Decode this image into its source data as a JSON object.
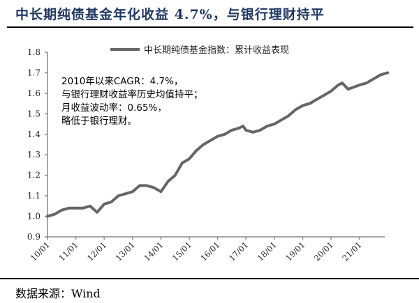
{
  "header": {
    "title": "中长期纯债基金年化收益 4.7%，与银行理财持平"
  },
  "footer": {
    "source": "数据来源：Wind"
  },
  "annotation": {
    "lines": [
      "2010年以来CAGR：4.7%，",
      "与银行理财收益率历史均值持平；",
      "月收益波动率：0.65%，",
      "略低于银行理财。"
    ]
  },
  "legend": {
    "label": "中长期纯债基金指数：累计收益表现",
    "color": "#666666"
  },
  "chart_data": {
    "type": "line",
    "title": "中长期纯债基金年化收益 4.7%，与银行理财持平",
    "xlabel": "",
    "ylabel": "",
    "ylim": [
      0.9,
      1.8
    ],
    "yticks": [
      "0.9",
      "1.0",
      "1.1",
      "1.2",
      "1.3",
      "1.4",
      "1.5",
      "1.6",
      "1.7",
      "1.8"
    ],
    "xticks": [
      "10/01",
      "11/01",
      "12/01",
      "13/01",
      "14/01",
      "15/01",
      "16/01",
      "17/01",
      "18/01",
      "19/01",
      "20/01",
      "21/01"
    ],
    "grid": false,
    "legend_position": "top",
    "series": [
      {
        "name": "中长期纯债基金指数：累计收益表现",
        "color": "#666666",
        "x": [
          2010.0,
          2010.25,
          2010.5,
          2010.75,
          2011.0,
          2011.25,
          2011.5,
          2011.75,
          2012.0,
          2012.25,
          2012.5,
          2012.75,
          2013.0,
          2013.25,
          2013.5,
          2013.75,
          2014.0,
          2014.25,
          2014.5,
          2014.75,
          2015.0,
          2015.25,
          2015.5,
          2015.75,
          2016.0,
          2016.25,
          2016.5,
          2016.75,
          2016.9,
          2017.0,
          2017.25,
          2017.5,
          2017.75,
          2018.0,
          2018.25,
          2018.5,
          2018.75,
          2019.0,
          2019.25,
          2019.5,
          2019.75,
          2020.0,
          2020.25,
          2020.4,
          2020.6,
          2020.8,
          2021.0,
          2021.25,
          2021.5,
          2021.75,
          2022.0
        ],
        "values": [
          1.0,
          1.01,
          1.03,
          1.04,
          1.04,
          1.04,
          1.05,
          1.02,
          1.06,
          1.07,
          1.1,
          1.11,
          1.12,
          1.15,
          1.15,
          1.14,
          1.12,
          1.17,
          1.2,
          1.26,
          1.28,
          1.32,
          1.35,
          1.37,
          1.39,
          1.4,
          1.42,
          1.43,
          1.44,
          1.42,
          1.41,
          1.42,
          1.44,
          1.45,
          1.47,
          1.49,
          1.52,
          1.54,
          1.55,
          1.57,
          1.59,
          1.61,
          1.64,
          1.65,
          1.62,
          1.63,
          1.64,
          1.65,
          1.67,
          1.69,
          1.7
        ]
      }
    ]
  }
}
